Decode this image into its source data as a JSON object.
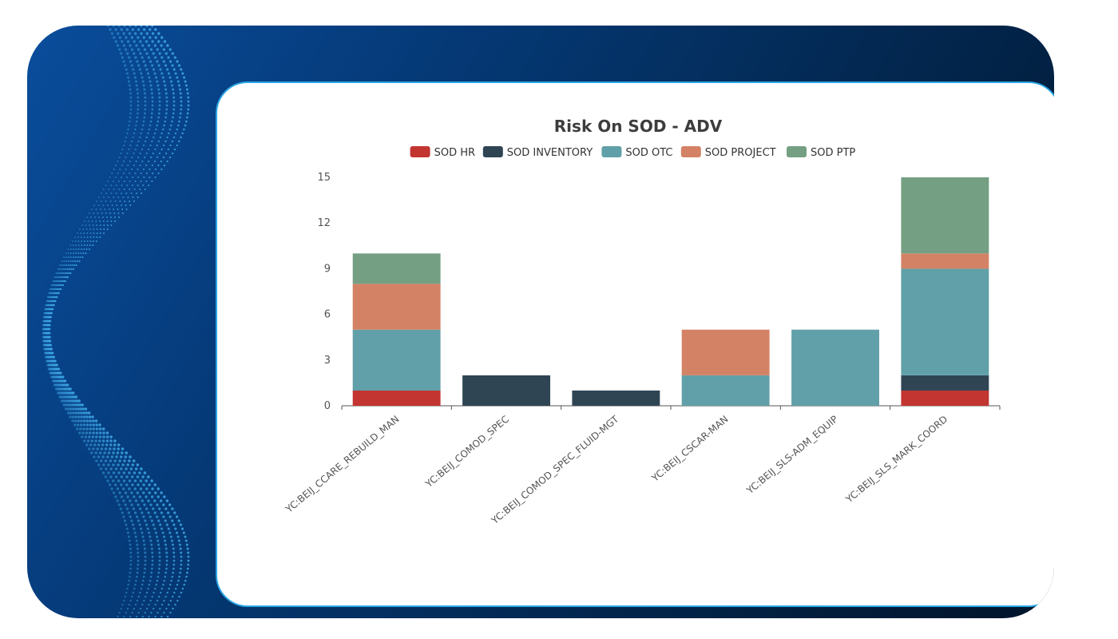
{
  "chart_data": {
    "type": "bar",
    "stacked": true,
    "title": "Risk On SOD - ADV",
    "categories": [
      "YC:BEIJ_CCARE_REBUILD_MAN",
      "YC:BEIJ_COMOD_SPEC",
      "YC:BEIJ_COMOD_SPEC_FLUID-MGT",
      "YC:BEIJ_CSCAR-MAN",
      "YC:BEIJ_SLS-ADM_EQUIP",
      "YC:BEIJ_SLS_MARK_COORD"
    ],
    "series": [
      {
        "name": "SOD HR",
        "color": "#c23531",
        "values": [
          1,
          0,
          0,
          0,
          0,
          1
        ]
      },
      {
        "name": "SOD INVENTORY",
        "color": "#2f4554",
        "values": [
          0,
          2,
          1,
          0,
          0,
          1
        ]
      },
      {
        "name": "SOD OTC",
        "color": "#61a0a8",
        "values": [
          4,
          0,
          0,
          2,
          5,
          7
        ]
      },
      {
        "name": "SOD PROJECT",
        "color": "#d48265",
        "values": [
          3,
          0,
          0,
          3,
          0,
          1
        ]
      },
      {
        "name": "SOD PTP",
        "color": "#749f83",
        "values": [
          2,
          0,
          0,
          0,
          0,
          5
        ]
      }
    ],
    "yticks": [
      0,
      3,
      6,
      9,
      12,
      15
    ],
    "ylim": [
      0,
      15
    ],
    "legend_position": "top-center",
    "grid": false
  }
}
